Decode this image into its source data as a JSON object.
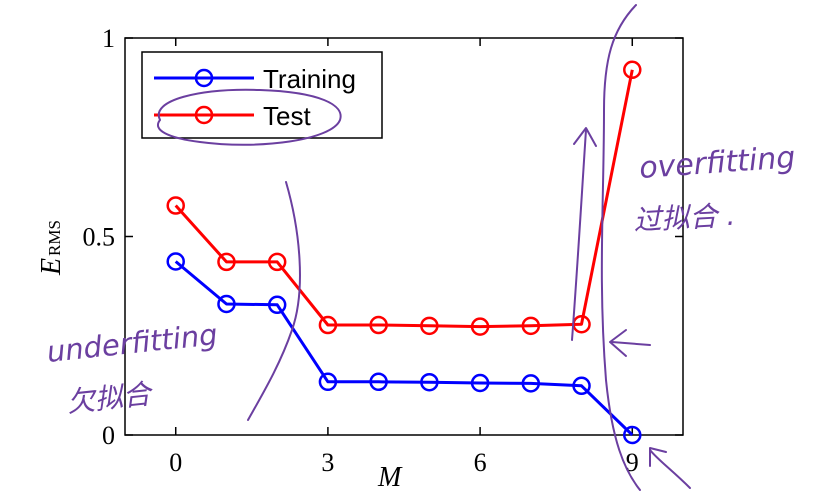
{
  "chart_data": {
    "type": "line",
    "title": "",
    "xlabel": "M",
    "ylabel_main": "E",
    "ylabel_sub": "RMS",
    "x": [
      0,
      1,
      2,
      3,
      4,
      5,
      6,
      7,
      8,
      9
    ],
    "xlim": [
      -1,
      10
    ],
    "ylim": [
      0,
      1
    ],
    "xticks": [
      0,
      3,
      6,
      9
    ],
    "yticks": [
      0,
      0.5,
      1
    ],
    "ytick_labels": [
      "0",
      "0.5",
      "1"
    ],
    "grid": false,
    "legend_position": "top-left",
    "series": [
      {
        "name": "Training",
        "color": "#0000ff",
        "values": [
          0.437,
          0.33,
          0.328,
          0.134,
          0.134,
          0.133,
          0.131,
          0.13,
          0.124,
          0.0
        ]
      },
      {
        "name": "Test",
        "color": "#ff0000",
        "values": [
          0.578,
          0.436,
          0.436,
          0.277,
          0.277,
          0.275,
          0.273,
          0.275,
          0.279,
          0.92
        ]
      }
    ]
  },
  "annotations": {
    "underfitting": "underfitting",
    "underfitting_cn": "欠拟合",
    "overfitting": "overfitting",
    "overfitting_cn": "过拟合 ."
  },
  "colors": {
    "annotation_ink": "#6b3fa0"
  }
}
